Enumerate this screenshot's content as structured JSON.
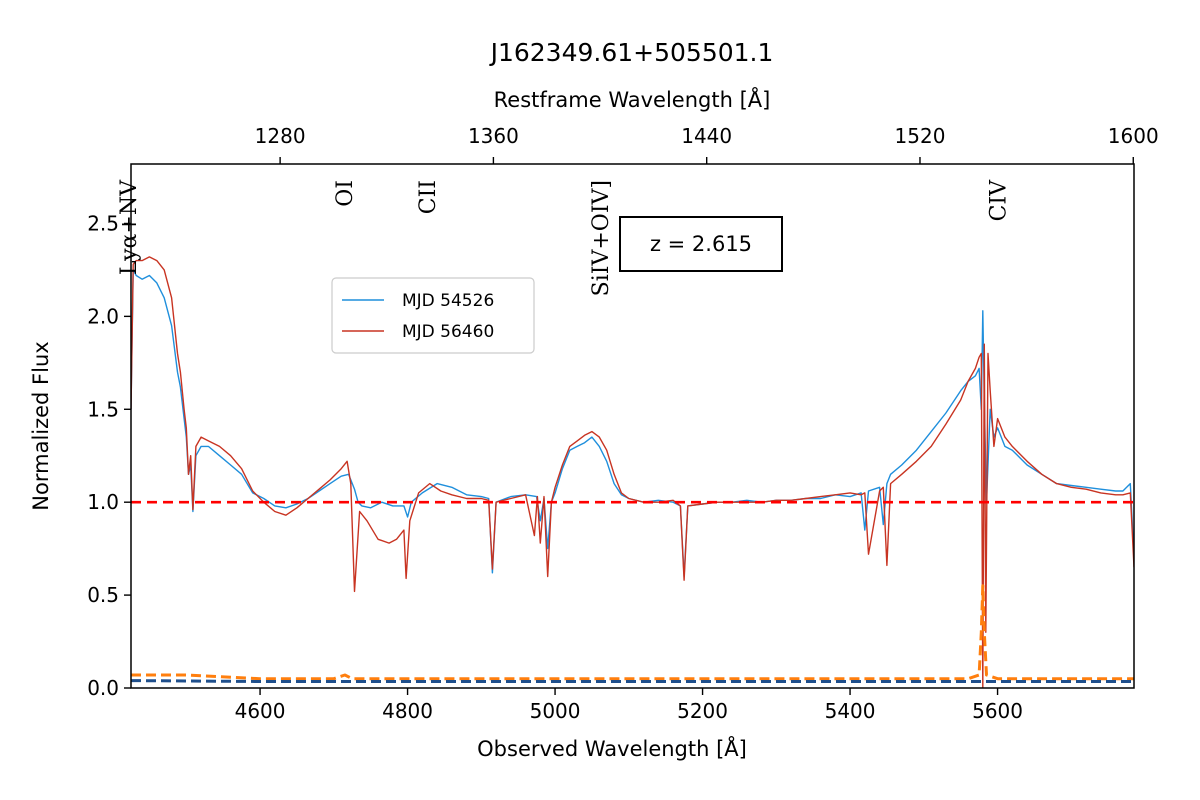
{
  "chart_data": {
    "type": "line",
    "title": "J162349.61+505501.1",
    "xlabel": "Observed Wavelength [Å]",
    "ylabel": "Normalized Flux",
    "top_xlabel": "Restframe Wavelength [Å]",
    "xlim": [
      4425,
      5785
    ],
    "ylim": [
      0.0,
      2.82
    ],
    "redshift": 2.615,
    "redshift_label": "z = 2.615",
    "xticks": [
      4600,
      4800,
      5000,
      5200,
      5400,
      5600
    ],
    "yticks": [
      0.0,
      0.5,
      1.0,
      1.5,
      2.0,
      2.5
    ],
    "ytick_labels": [
      "0.0",
      "0.5",
      "1.0",
      "1.5",
      "2.0",
      "2.5"
    ],
    "top_xticks": [
      1280,
      1360,
      1440,
      1520,
      1600
    ],
    "reference_line": {
      "y": 1.0,
      "color": "#ff0000",
      "style": "dashed"
    },
    "lines": [
      {
        "label": "Lyα+NV",
        "rest": 1223
      },
      {
        "label": "OI",
        "rest": 1304
      },
      {
        "label": "CII",
        "rest": 1335
      },
      {
        "label": "SiIV+OIV]",
        "rest": 1400
      },
      {
        "label": "CIV",
        "rest": 1549
      }
    ],
    "legend": {
      "placement": "upper-center-left"
    },
    "series": [
      {
        "name": "MJD 54526",
        "color": "#1f8fdc",
        "x": [
          4425,
          4428,
          4432,
          4440,
          4450,
          4460,
          4470,
          4480,
          4488,
          4492,
          4497,
          4500,
          4503,
          4506,
          4509,
          4513,
          4520,
          4530,
          4545,
          4560,
          4575,
          4590,
          4605,
          4620,
          4635,
          4650,
          4665,
          4680,
          4695,
          4710,
          4720,
          4728,
          4733,
          4738,
          4750,
          4765,
          4780,
          4795,
          4800,
          4805,
          4820,
          4840,
          4860,
          4880,
          4900,
          4910,
          4915,
          4920,
          4940,
          4960,
          4975,
          4980,
          4985,
          4990,
          4995,
          5000,
          5010,
          5020,
          5030,
          5040,
          5050,
          5060,
          5070,
          5080,
          5090,
          5100,
          5120,
          5140,
          5160,
          5170,
          5175,
          5180,
          5200,
          5220,
          5240,
          5260,
          5280,
          5300,
          5320,
          5340,
          5360,
          5380,
          5400,
          5415,
          5420,
          5425,
          5440,
          5445,
          5450,
          5455,
          5470,
          5490,
          5510,
          5530,
          5550,
          5560,
          5570,
          5575,
          5578,
          5580,
          5582,
          5585,
          5590,
          5595,
          5600,
          5610,
          5620,
          5640,
          5660,
          5680,
          5700,
          5720,
          5740,
          5760,
          5770,
          5780,
          5785
        ],
        "values": [
          1.5,
          2.25,
          2.22,
          2.2,
          2.22,
          2.18,
          2.1,
          1.95,
          1.7,
          1.62,
          1.45,
          1.35,
          1.15,
          1.2,
          0.95,
          1.25,
          1.3,
          1.3,
          1.25,
          1.2,
          1.15,
          1.05,
          1.02,
          0.98,
          0.97,
          0.99,
          1.02,
          1.06,
          1.1,
          1.14,
          1.15,
          1.07,
          1.0,
          0.98,
          0.97,
          1.0,
          0.98,
          0.98,
          0.92,
          1.0,
          1.05,
          1.1,
          1.08,
          1.04,
          1.03,
          1.02,
          0.62,
          1.0,
          1.03,
          1.04,
          1.03,
          0.9,
          1.02,
          0.75,
          1.0,
          1.05,
          1.18,
          1.28,
          1.3,
          1.32,
          1.35,
          1.3,
          1.22,
          1.1,
          1.04,
          1.02,
          1.0,
          1.01,
          1.0,
          0.98,
          0.6,
          0.98,
          0.99,
          1.0,
          1.0,
          1.01,
          1.0,
          1.01,
          1.01,
          1.02,
          1.02,
          1.04,
          1.03,
          1.05,
          0.85,
          1.06,
          1.08,
          0.88,
          1.1,
          1.15,
          1.2,
          1.28,
          1.38,
          1.48,
          1.6,
          1.65,
          1.68,
          1.72,
          1.5,
          2.03,
          1.55,
          1.0,
          1.5,
          1.35,
          1.4,
          1.3,
          1.28,
          1.2,
          1.15,
          1.1,
          1.09,
          1.08,
          1.07,
          1.06,
          1.06,
          1.1,
          0.7
        ]
      },
      {
        "name": "MJD 56460",
        "color": "#c83422",
        "x": [
          4425,
          4428,
          4432,
          4440,
          4450,
          4460,
          4470,
          4480,
          4488,
          4492,
          4497,
          4500,
          4503,
          4506,
          4509,
          4513,
          4520,
          4530,
          4545,
          4560,
          4575,
          4590,
          4605,
          4620,
          4635,
          4650,
          4665,
          4680,
          4695,
          4710,
          4718,
          4723,
          4728,
          4735,
          4745,
          4760,
          4775,
          4785,
          4795,
          4798,
          4803,
          4815,
          4830,
          4845,
          4860,
          4880,
          4900,
          4910,
          4915,
          4920,
          4940,
          4960,
          4972,
          4976,
          4980,
          4985,
          4990,
          4995,
          5000,
          5010,
          5020,
          5030,
          5040,
          5050,
          5060,
          5070,
          5080,
          5090,
          5100,
          5120,
          5140,
          5160,
          5170,
          5175,
          5180,
          5200,
          5220,
          5240,
          5260,
          5280,
          5300,
          5320,
          5340,
          5360,
          5380,
          5400,
          5415,
          5420,
          5425,
          5440,
          5445,
          5450,
          5455,
          5470,
          5490,
          5510,
          5530,
          5550,
          5560,
          5570,
          5575,
          5578,
          5580,
          5582,
          5584,
          5587,
          5590,
          5595,
          5600,
          5610,
          5620,
          5640,
          5660,
          5680,
          5700,
          5720,
          5740,
          5760,
          5770,
          5780,
          5785
        ],
        "values": [
          1.5,
          2.28,
          2.3,
          2.3,
          2.32,
          2.3,
          2.25,
          2.1,
          1.8,
          1.7,
          1.5,
          1.4,
          1.15,
          1.25,
          0.96,
          1.3,
          1.35,
          1.33,
          1.3,
          1.25,
          1.18,
          1.06,
          1.0,
          0.95,
          0.93,
          0.97,
          1.02,
          1.07,
          1.12,
          1.18,
          1.22,
          1.1,
          0.52,
          0.95,
          0.9,
          0.8,
          0.78,
          0.8,
          0.85,
          0.59,
          0.9,
          1.05,
          1.1,
          1.06,
          1.04,
          1.02,
          1.02,
          1.01,
          0.64,
          1.0,
          1.02,
          1.04,
          0.82,
          1.03,
          0.78,
          1.03,
          0.6,
          1.0,
          1.08,
          1.2,
          1.3,
          1.33,
          1.36,
          1.38,
          1.35,
          1.28,
          1.15,
          1.05,
          1.02,
          1.0,
          1.0,
          1.01,
          0.98,
          0.58,
          0.98,
          0.99,
          1.0,
          1.0,
          1.0,
          1.0,
          1.01,
          1.01,
          1.02,
          1.03,
          1.04,
          1.05,
          1.04,
          1.05,
          0.72,
          1.06,
          1.08,
          0.66,
          1.1,
          1.15,
          1.22,
          1.3,
          1.42,
          1.55,
          1.65,
          1.72,
          1.78,
          1.8,
          0.0,
          1.85,
          0.3,
          1.8,
          1.6,
          1.3,
          1.45,
          1.35,
          1.3,
          1.22,
          1.15,
          1.1,
          1.08,
          1.07,
          1.05,
          1.04,
          1.04,
          1.05,
          0.65
        ]
      },
      {
        "name": "",
        "color": "#ff7f0e",
        "style": "dashed",
        "x": [
          4425,
          4500,
          4600,
          4700,
          4715,
          4725,
          4800,
          5000,
          5200,
          5400,
          5560,
          5575,
          5578,
          5580,
          5582,
          5585,
          5600,
          5700,
          5785
        ],
        "values": [
          0.07,
          0.07,
          0.05,
          0.05,
          0.07,
          0.05,
          0.05,
          0.05,
          0.05,
          0.05,
          0.05,
          0.07,
          0.3,
          0.55,
          0.3,
          0.07,
          0.05,
          0.05,
          0.05
        ]
      },
      {
        "name": "",
        "color": "#1f4f8c",
        "style": "dashed",
        "x": [
          4425,
          4600,
          4800,
          5000,
          5200,
          5400,
          5600,
          5785
        ],
        "values": [
          0.04,
          0.035,
          0.035,
          0.035,
          0.035,
          0.035,
          0.035,
          0.035
        ]
      }
    ]
  }
}
